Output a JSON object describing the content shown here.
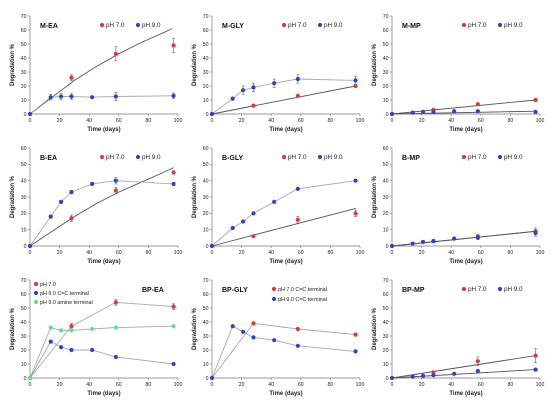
{
  "figure": {
    "ylabel": "Degradation %",
    "xlabel": "Time (days)",
    "colors": {
      "red": "#e0383a",
      "blue": "#2b45c8",
      "green": "#5ee09a",
      "line": "#a8a8a8"
    }
  },
  "chart_data": [
    {
      "type": "scatter",
      "title": "M-EA",
      "xlabel": "Time (days)",
      "ylabel": "Degradation %",
      "xlim": [
        0,
        100
      ],
      "ylim": [
        0,
        70
      ],
      "xticks": [
        "0",
        "20",
        "40",
        "60",
        "80",
        "100"
      ],
      "yticks": [
        "0",
        "10",
        "20",
        "30",
        "40",
        "50",
        "60",
        "70"
      ],
      "legend": "inline-top",
      "series": [
        {
          "name": "pH 7.0",
          "color": "red",
          "fit": "curve",
          "x": [
            0,
            28,
            58,
            97
          ],
          "y": [
            0,
            26,
            43,
            49
          ],
          "err": [
            0,
            2,
            5,
            5
          ],
          "curve_x": [
            0,
            15,
            30,
            45,
            60,
            75,
            90,
            96
          ],
          "curve_y": [
            0,
            12,
            24,
            34,
            43,
            51,
            58,
            61
          ]
        },
        {
          "name": "pH 9.0",
          "color": "blue",
          "fit": "connect",
          "x": [
            0,
            14,
            21,
            28,
            42,
            58,
            97
          ],
          "y": [
            0,
            12,
            12.5,
            12.5,
            12,
            12.5,
            13
          ],
          "err": [
            0,
            2,
            2,
            2,
            1,
            3,
            2
          ]
        }
      ]
    },
    {
      "type": "scatter",
      "title": "M-GLY",
      "xlabel": "Time (days)",
      "ylabel": "Degradation %",
      "xlim": [
        0,
        100
      ],
      "ylim": [
        0,
        70
      ],
      "xticks": [
        "0",
        "20",
        "40",
        "60",
        "80",
        "100"
      ],
      "yticks": [
        "0",
        "10",
        "20",
        "30",
        "40",
        "50",
        "60",
        "70"
      ],
      "legend": "inline-top",
      "series": [
        {
          "name": "pH 7.0",
          "color": "red",
          "fit": "line",
          "x": [
            0,
            28,
            58,
            97
          ],
          "y": [
            0,
            6,
            13,
            20
          ],
          "err": [
            0,
            0,
            0,
            0
          ],
          "fit_line": [
            [
              0,
              0
            ],
            [
              97,
              20
            ]
          ]
        },
        {
          "name": "pH 9.0",
          "color": "blue",
          "fit": "connect",
          "x": [
            0,
            14,
            21,
            28,
            42,
            58,
            97
          ],
          "y": [
            0,
            11,
            17,
            19,
            22,
            25,
            24
          ],
          "err": [
            0,
            1,
            3,
            3,
            3,
            3,
            3
          ]
        }
      ]
    },
    {
      "type": "scatter",
      "title": "M-MP",
      "xlabel": "Time (days)",
      "ylabel": "Degradation %",
      "xlim": [
        0,
        100
      ],
      "ylim": [
        0,
        70
      ],
      "xticks": [
        "0",
        "20",
        "40",
        "60",
        "80",
        "100"
      ],
      "yticks": [
        "0",
        "10",
        "20",
        "30",
        "40",
        "50",
        "60",
        "70"
      ],
      "legend": "inline-top",
      "series": [
        {
          "name": "pH 7.0",
          "color": "red",
          "fit": "line",
          "x": [
            0,
            28,
            58,
            97
          ],
          "y": [
            0,
            3,
            7,
            10
          ],
          "err": [
            0,
            1,
            1,
            1
          ],
          "fit_line": [
            [
              0,
              0
            ],
            [
              97,
              10
            ]
          ]
        },
        {
          "name": "pH 9.0",
          "color": "blue",
          "fit": "line",
          "x": [
            0,
            14,
            21,
            28,
            42,
            58,
            97
          ],
          "y": [
            0,
            1,
            1.5,
            1.5,
            2,
            2,
            1.5
          ],
          "err": [
            0,
            0,
            0,
            0,
            0,
            0,
            0
          ],
          "fit_line": [
            [
              0,
              0
            ],
            [
              97,
              2
            ]
          ]
        }
      ]
    },
    {
      "type": "scatter",
      "title": "B-EA",
      "xlabel": "Time (days)",
      "ylabel": "Degradation %",
      "xlim": [
        0,
        100
      ],
      "ylim": [
        0,
        60
      ],
      "xticks": [
        "0",
        "20",
        "40",
        "60",
        "80",
        "100"
      ],
      "yticks": [
        "0",
        "10",
        "20",
        "30",
        "40",
        "50",
        "60"
      ],
      "legend": "inline-top",
      "series": [
        {
          "name": "pH 7.0",
          "color": "red",
          "fit": "curve",
          "x": [
            0,
            28,
            58,
            97
          ],
          "y": [
            0,
            17,
            34,
            45
          ],
          "err": [
            0,
            2,
            2,
            1
          ],
          "curve_x": [
            0,
            15,
            30,
            45,
            60,
            75,
            90,
            97
          ],
          "curve_y": [
            0,
            9,
            18,
            26,
            33,
            39,
            45,
            48
          ]
        },
        {
          "name": "pH 9.0",
          "color": "blue",
          "fit": "connect",
          "x": [
            0,
            14,
            21,
            28,
            42,
            58,
            97
          ],
          "y": [
            0,
            18,
            27,
            33,
            38,
            40,
            38
          ],
          "err": [
            0,
            1,
            1,
            1,
            1,
            2,
            1
          ]
        }
      ]
    },
    {
      "type": "scatter",
      "title": "B-GLY",
      "xlabel": "Time (days)",
      "ylabel": "Degradation %",
      "xlim": [
        0,
        100
      ],
      "ylim": [
        0,
        60
      ],
      "xticks": [
        "0",
        "20",
        "40",
        "60",
        "80",
        "100"
      ],
      "yticks": [
        "0",
        "10",
        "20",
        "30",
        "40",
        "50",
        "60"
      ],
      "legend": "inline-top",
      "series": [
        {
          "name": "pH 7.0",
          "color": "red",
          "fit": "line",
          "x": [
            0,
            28,
            58,
            97
          ],
          "y": [
            0,
            6,
            16,
            20
          ],
          "err": [
            0,
            0,
            2,
            2
          ],
          "fit_line": [
            [
              0,
              0
            ],
            [
              97,
              23
            ]
          ]
        },
        {
          "name": "pH 9.0",
          "color": "blue",
          "fit": "connect",
          "x": [
            0,
            14,
            21,
            28,
            42,
            58,
            97
          ],
          "y": [
            0,
            11,
            15,
            20,
            27,
            35,
            40
          ],
          "err": [
            0,
            0,
            0,
            0,
            0,
            0,
            0
          ]
        }
      ]
    },
    {
      "type": "scatter",
      "title": "B-MP",
      "xlabel": "Time (days)",
      "ylabel": "Degradation %",
      "xlim": [
        0,
        100
      ],
      "ylim": [
        0,
        60
      ],
      "xticks": [
        "0",
        "20",
        "40",
        "60",
        "80",
        "100"
      ],
      "yticks": [
        "0",
        "10",
        "20",
        "30",
        "40",
        "50",
        "60"
      ],
      "legend": "inline-top",
      "series": [
        {
          "name": "pH 7.0",
          "color": "red",
          "fit": "line",
          "x": [
            0,
            28,
            58,
            97
          ],
          "y": [
            0,
            3,
            6,
            9
          ],
          "err": [
            0,
            1,
            1,
            2
          ],
          "fit_line": [
            [
              0,
              0
            ],
            [
              97,
              9
            ]
          ]
        },
        {
          "name": "pH 9.0",
          "color": "blue",
          "fit": "line",
          "x": [
            0,
            14,
            21,
            28,
            42,
            58,
            97
          ],
          "y": [
            0,
            1.5,
            2.5,
            3,
            4.5,
            5,
            8
          ],
          "err": [
            0,
            0,
            0,
            0,
            0,
            0,
            2
          ],
          "fit_line": [
            [
              0,
              0
            ],
            [
              97,
              9
            ]
          ]
        }
      ]
    },
    {
      "type": "scatter",
      "title": "BP-EA",
      "xlabel": "Time (days)",
      "ylabel": "Degradation %",
      "xlim": [
        0,
        100
      ],
      "ylim": [
        0,
        70
      ],
      "xticks": [
        "0",
        "20",
        "40",
        "60",
        "80",
        "100"
      ],
      "yticks": [
        "0",
        "10",
        "20",
        "30",
        "40",
        "50",
        "60",
        "70"
      ],
      "legend": "top-left-stacked",
      "series": [
        {
          "name": "pH 7.0",
          "color": "red",
          "fit": "connect",
          "x": [
            0,
            28,
            58,
            97
          ],
          "y": [
            0,
            37,
            54,
            51
          ],
          "err": [
            0,
            2,
            2,
            2
          ]
        },
        {
          "name": "pH 9.0  C=C terminal",
          "color": "blue",
          "fit": "connect",
          "x": [
            0,
            14,
            21,
            28,
            42,
            58,
            97
          ],
          "y": [
            0,
            26,
            22,
            20,
            20,
            15,
            10
          ],
          "err": [
            0,
            0,
            0,
            0,
            0,
            0,
            0
          ]
        },
        {
          "name": "pH 9.0  amine terminal",
          "color": "green",
          "fit": "connect",
          "x": [
            0,
            14,
            21,
            28,
            42,
            58,
            97
          ],
          "y": [
            0,
            36,
            34,
            34,
            35,
            36,
            37
          ],
          "err": [
            0,
            0,
            0,
            0,
            0,
            0,
            0
          ]
        }
      ]
    },
    {
      "type": "scatter",
      "title": "BP-GLY",
      "xlabel": "Time (days)",
      "ylabel": "Degradation %",
      "xlim": [
        0,
        100
      ],
      "ylim": [
        0,
        70
      ],
      "xticks": [
        "0",
        "20",
        "40",
        "60",
        "80",
        "100"
      ],
      "yticks": [
        "0",
        "10",
        "20",
        "30",
        "40",
        "50",
        "60",
        "70"
      ],
      "legend": "top-right-stacked",
      "series": [
        {
          "name": "pH 7.0  C=C terminal",
          "color": "red",
          "fit": "connect",
          "x": [
            0,
            28,
            58,
            97
          ],
          "y": [
            0,
            39,
            35,
            31
          ],
          "err": [
            0,
            0,
            0,
            0
          ]
        },
        {
          "name": "pH 9.0  C=C terminal",
          "color": "blue",
          "fit": "connect",
          "x": [
            0,
            14,
            21,
            28,
            42,
            58,
            97
          ],
          "y": [
            0,
            37,
            33,
            29,
            27,
            23,
            19
          ],
          "err": [
            0,
            0,
            0,
            0,
            0,
            0,
            0
          ]
        }
      ]
    },
    {
      "type": "scatter",
      "title": "BP-MP",
      "xlabel": "Time (days)",
      "ylabel": "Degradation %",
      "xlim": [
        0,
        100
      ],
      "ylim": [
        0,
        70
      ],
      "xticks": [
        "0",
        "20",
        "40",
        "60",
        "80",
        "100"
      ],
      "yticks": [
        "0",
        "10",
        "20",
        "30",
        "40",
        "50",
        "60",
        "70"
      ],
      "legend": "inline-top",
      "series": [
        {
          "name": "pH 7.0",
          "color": "red",
          "fit": "line",
          "x": [
            0,
            28,
            58,
            97
          ],
          "y": [
            0,
            4,
            12,
            16
          ],
          "err": [
            0,
            1,
            3,
            5
          ],
          "fit_line": [
            [
              0,
              0
            ],
            [
              97,
              16
            ]
          ]
        },
        {
          "name": "pH 9.0",
          "color": "blue",
          "fit": "line",
          "x": [
            0,
            14,
            21,
            28,
            42,
            58,
            97
          ],
          "y": [
            0,
            1,
            1.5,
            2,
            3,
            5,
            6
          ],
          "err": [
            0,
            0,
            0,
            0,
            0,
            0,
            0
          ],
          "fit_line": [
            [
              0,
              0
            ],
            [
              97,
              6
            ]
          ]
        }
      ]
    }
  ]
}
